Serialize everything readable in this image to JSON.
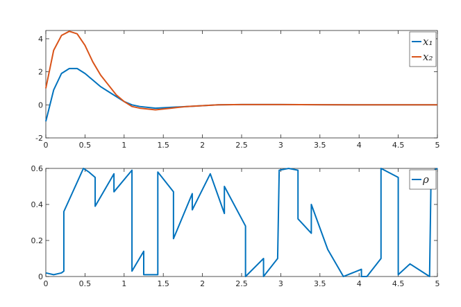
{
  "chart_data": [
    {
      "type": "line",
      "x": [
        0,
        0.1,
        0.2,
        0.3,
        0.4,
        0.5,
        0.6,
        0.7,
        0.8,
        0.9,
        1.0,
        1.1,
        1.2,
        1.4,
        1.6,
        1.8,
        2.0,
        2.2,
        2.5,
        3,
        3.5,
        4,
        4.5,
        5
      ],
      "series": [
        {
          "name": "x₁",
          "color": "#0072BD",
          "values": [
            -1,
            0.9,
            1.9,
            2.2,
            2.2,
            1.9,
            1.5,
            1.1,
            0.8,
            0.5,
            0.2,
            0.0,
            -0.1,
            -0.2,
            -0.15,
            -0.1,
            -0.05,
            0,
            0.02,
            0.02,
            0.01,
            0,
            0,
            0
          ]
        },
        {
          "name": "x₂",
          "color": "#D95319",
          "values": [
            1,
            3.3,
            4.2,
            4.45,
            4.3,
            3.6,
            2.6,
            1.8,
            1.2,
            0.6,
            0.2,
            -0.1,
            -0.2,
            -0.3,
            -0.2,
            -0.1,
            -0.05,
            0,
            0.02,
            0.02,
            0.01,
            0,
            0,
            0
          ]
        }
      ],
      "xlim": [
        0,
        5
      ],
      "xticks": [
        0,
        0.5,
        1,
        1.5,
        2,
        2.5,
        3,
        3.5,
        4,
        4.5,
        5
      ],
      "ylim": [
        -2,
        4.5
      ],
      "yticks": [
        -2,
        0,
        2,
        4
      ],
      "legend": "top-right"
    },
    {
      "type": "line",
      "x": [
        0,
        0.1,
        0.2,
        0.23,
        0.23,
        0.48,
        0.55,
        0.63,
        0.63,
        0.87,
        0.87,
        1.1,
        1.1,
        1.25,
        1.25,
        1.43,
        1.43,
        1.63,
        1.63,
        1.87,
        1.87,
        2.1,
        2.28,
        2.28,
        2.55,
        2.55,
        2.78,
        2.78,
        2.96,
        2.98,
        3.1,
        3.22,
        3.22,
        3.39,
        3.39,
        3.6,
        3.8,
        4.03,
        4.03,
        4.1,
        4.28,
        4.28,
        4.5,
        4.5,
        4.65,
        4.9,
        4.92,
        5
      ],
      "series": [
        {
          "name": "ρ",
          "color": "#0072BD",
          "values": [
            0.02,
            0.01,
            0.02,
            0.03,
            0.36,
            0.6,
            0.58,
            0.55,
            0.39,
            0.57,
            0.47,
            0.59,
            0.03,
            0.14,
            0.01,
            0.01,
            0.58,
            0.47,
            0.21,
            0.46,
            0.37,
            0.57,
            0.35,
            0.5,
            0.28,
            0,
            0.1,
            0,
            0.1,
            0.59,
            0.6,
            0.59,
            0.32,
            0.24,
            0.4,
            0.15,
            0,
            0.04,
            0,
            0,
            0.1,
            0.6,
            0.55,
            0.01,
            0.07,
            0,
            0.58,
            0.6
          ]
        }
      ],
      "xlim": [
        0,
        5
      ],
      "xticks": [
        0,
        0.5,
        1,
        1.5,
        2,
        2.5,
        3,
        3.5,
        4,
        4.5,
        5
      ],
      "ylim": [
        0,
        0.6
      ],
      "yticks": [
        0,
        0.2,
        0.4,
        0.6
      ],
      "legend": "top-right"
    }
  ]
}
